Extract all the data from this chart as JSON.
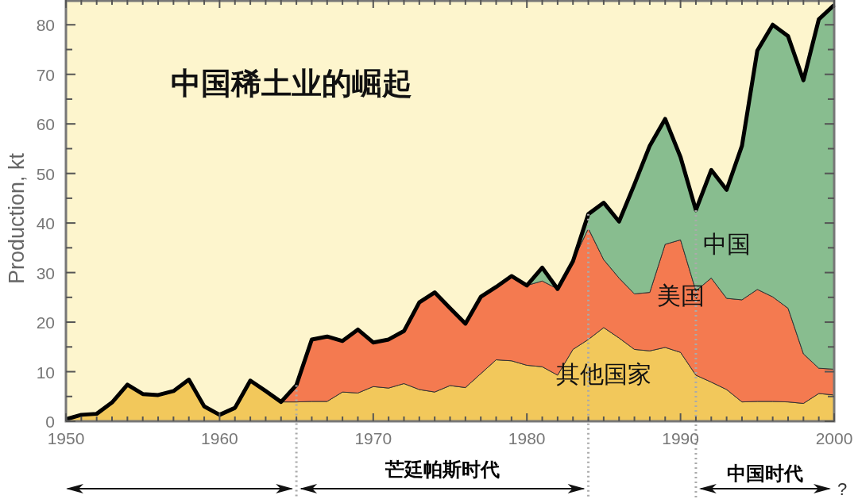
{
  "chart_data": {
    "type": "area",
    "stacked": true,
    "title": "中国稀土业的崛起",
    "ylabel": "Production, kt",
    "x": [
      1950,
      1951,
      1952,
      1953,
      1954,
      1955,
      1956,
      1957,
      1958,
      1959,
      1960,
      1961,
      1962,
      1963,
      1964,
      1965,
      1966,
      1967,
      1968,
      1969,
      1970,
      1971,
      1972,
      1973,
      1974,
      1975,
      1976,
      1977,
      1978,
      1979,
      1980,
      1981,
      1982,
      1983,
      1984,
      1985,
      1986,
      1987,
      1988,
      1989,
      1990,
      1991,
      1992,
      1993,
      1994,
      1995,
      1996,
      1997,
      1998,
      1999,
      2000
    ],
    "series": [
      {
        "name": "其他国家",
        "color": "#f2c85b",
        "values": [
          0.4,
          1.3,
          1.5,
          3.8,
          7.4,
          5.5,
          5.3,
          6.1,
          8.4,
          3.0,
          1.3,
          2.7,
          8.2,
          6.1,
          3.9,
          3.9,
          4.0,
          4.0,
          5.9,
          5.7,
          7.0,
          6.7,
          7.6,
          6.4,
          5.9,
          7.2,
          6.8,
          9.6,
          12.4,
          12.2,
          11.3,
          11.0,
          9.3,
          14.5,
          16.5,
          18.9,
          16.8,
          14.5,
          14.2,
          14.9,
          13.9,
          9.3,
          7.9,
          6.4,
          3.9,
          4.0,
          4.0,
          3.9,
          3.6,
          5.6,
          5.3
        ]
      },
      {
        "name": "美国",
        "color": "#f47a50",
        "values": [
          0,
          0,
          0,
          0,
          0,
          0,
          0,
          0,
          0,
          0,
          0,
          0,
          0,
          0,
          0,
          3.4,
          12.5,
          13.1,
          10.3,
          12.8,
          8.9,
          9.8,
          10.6,
          17.6,
          20.1,
          15.6,
          12.9,
          15.5,
          14.7,
          17.1,
          16.1,
          17.3,
          17.4,
          17.8,
          22.4,
          13.7,
          12.1,
          11.2,
          11.8,
          20.8,
          22.7,
          17.0,
          21.0,
          18.4,
          20.6,
          22.6,
          21.1,
          18.9,
          10.0,
          5.1,
          5.2
        ]
      },
      {
        "name": "中国",
        "color": "#88bd8f",
        "values": [
          0,
          0,
          0,
          0,
          0,
          0,
          0,
          0,
          0,
          0,
          0,
          0,
          0,
          0,
          0,
          0,
          0,
          0,
          0,
          0,
          0,
          0,
          0,
          0,
          0,
          0,
          0,
          0,
          0,
          0,
          0,
          2.7,
          0,
          0,
          2.9,
          11.5,
          11.4,
          22.1,
          29.6,
          25.3,
          16.7,
          16.3,
          21.8,
          21.9,
          31.1,
          48.2,
          54.9,
          54.9,
          55.2,
          70.4,
          73.5
        ]
      }
    ],
    "xlim": [
      1950,
      2000
    ],
    "xticks": [
      1950,
      {
        "value": 1951,
        "label": null
      },
      {
        "value": 1952,
        "label": null
      },
      {
        "value": 1953,
        "label": null
      },
      {
        "value": 1954,
        "label": null
      },
      {
        "value": 1955,
        "label": null
      },
      {
        "value": 1956,
        "label": null
      },
      {
        "value": 1957,
        "label": null
      },
      {
        "value": 1958,
        "label": null
      },
      {
        "value": 1959,
        "label": null
      },
      1960,
      {
        "value": 1961,
        "label": null
      },
      {
        "value": 1962,
        "label": null
      },
      {
        "value": 1963,
        "label": null
      },
      {
        "value": 1964,
        "label": null
      },
      {
        "value": 1965,
        "label": null
      },
      {
        "value": 1966,
        "label": null
      },
      {
        "value": 1967,
        "label": null
      },
      {
        "value": 1968,
        "label": null
      },
      {
        "value": 1969,
        "label": null
      },
      1970,
      {
        "value": 1971,
        "label": null
      },
      {
        "value": 1972,
        "label": null
      },
      {
        "value": 1973,
        "label": null
      },
      {
        "value": 1974,
        "label": null
      },
      {
        "value": 1975,
        "label": null
      },
      {
        "value": 1976,
        "label": null
      },
      {
        "value": 1977,
        "label": null
      },
      {
        "value": 1978,
        "label": null
      },
      {
        "value": 1979,
        "label": null
      },
      1980,
      {
        "value": 1981,
        "label": null
      },
      {
        "value": 1982,
        "label": null
      },
      {
        "value": 1983,
        "label": null
      },
      {
        "value": 1984,
        "label": null
      },
      {
        "value": 1985,
        "label": null
      },
      {
        "value": 1986,
        "label": null
      },
      {
        "value": 1987,
        "label": null
      },
      {
        "value": 1988,
        "label": null
      },
      {
        "value": 1989,
        "label": null
      },
      1990,
      {
        "value": 1991,
        "label": null
      },
      {
        "value": 1992,
        "label": null
      },
      {
        "value": 1993,
        "label": null
      },
      {
        "value": 1994,
        "label": null
      },
      {
        "value": 1995,
        "label": null
      },
      {
        "value": 1996,
        "label": null
      },
      {
        "value": 1997,
        "label": null
      },
      {
        "value": 1998,
        "label": null
      },
      {
        "value": 1999,
        "label": null
      },
      2000
    ],
    "ylim": [
      0,
      85
    ],
    "yticks": [
      0,
      {
        "value": 5,
        "label": null
      },
      10,
      {
        "value": 15,
        "label": null
      },
      20,
      {
        "value": 25,
        "label": null
      },
      30,
      {
        "value": 35,
        "label": null
      },
      40,
      {
        "value": 45,
        "label": null
      },
      50,
      {
        "value": 55,
        "label": null
      },
      60,
      {
        "value": 65,
        "label": null
      },
      70,
      {
        "value": 75,
        "label": null
      },
      80
    ],
    "grid": false,
    "ref_lines": [
      {
        "axis": "x",
        "value": 1965,
        "line_style": "dotted",
        "color": "#aaaaaa"
      },
      {
        "axis": "x",
        "value": 1984,
        "line_style": "dotted",
        "color": "#aaaaaa"
      },
      {
        "axis": "x",
        "value": 1991,
        "line_style": "dotted",
        "color": "#aaaaaa"
      }
    ],
    "annotations": [
      "芒廷帕斯时代",
      "中国时代",
      "?"
    ]
  }
}
